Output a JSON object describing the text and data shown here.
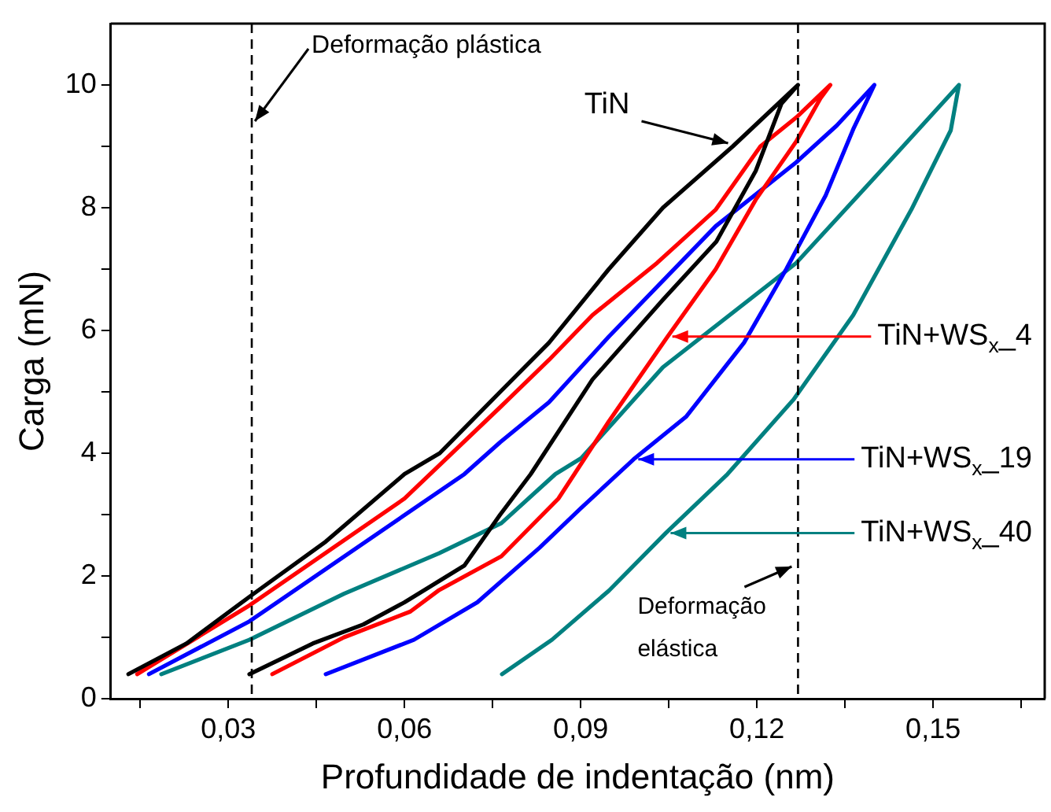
{
  "chart_data": {
    "type": "line",
    "xlabel": "Profundidade de indentação (nm)",
    "ylabel": "Carga (mN)",
    "xlim": [
      0.01,
      0.169
    ],
    "ylim": [
      0,
      11
    ],
    "xticks": [
      {
        "value": 0.015,
        "label": null
      },
      {
        "value": 0.03,
        "label": "0,03"
      },
      {
        "value": 0.045,
        "label": null
      },
      {
        "value": 0.06,
        "label": "0,06"
      },
      {
        "value": 0.075,
        "label": null
      },
      {
        "value": 0.09,
        "label": "0,09"
      },
      {
        "value": 0.105,
        "label": null
      },
      {
        "value": 0.12,
        "label": "0,12"
      },
      {
        "value": 0.135,
        "label": null
      },
      {
        "value": 0.15,
        "label": "0,15"
      },
      {
        "value": 0.165,
        "label": null
      }
    ],
    "yticks": [
      0,
      {
        "value": 1,
        "label": null
      },
      2,
      {
        "value": 3,
        "label": null
      },
      4,
      {
        "value": 5,
        "label": null
      },
      6,
      {
        "value": 7,
        "label": null
      },
      8,
      {
        "value": 9,
        "label": null
      },
      10
    ],
    "grid": false,
    "legend": false,
    "marker": "none",
    "line_style": "solid",
    "ref_lines": [
      {
        "axis": "x",
        "value": 0.034,
        "label": "Deformação plástica",
        "color": "#000000",
        "line_style": "dashed"
      },
      {
        "axis": "x",
        "value": 0.127,
        "label": "Deformação elástica",
        "color": "#000000",
        "line_style": "dashed"
      }
    ],
    "series": [
      {
        "name": "TiN",
        "color": "#000000",
        "x": [
          0.013,
          0.0229,
          0.0336,
          0.0466,
          0.06,
          0.066,
          0.0763,
          0.0846,
          0.0948,
          0.104,
          0.1159,
          0.127,
          0.1242,
          0.1198,
          0.1131,
          0.104,
          0.092,
          0.0815,
          0.0763,
          0.0702,
          0.06,
          0.053,
          0.0444,
          0.0336
        ],
        "values": [
          0.4,
          0.9,
          1.66,
          2.56,
          3.66,
          4.0,
          5.0,
          5.8,
          7.0,
          8.0,
          9.0,
          10,
          9.7,
          8.6,
          7.45,
          6.5,
          5.2,
          3.66,
          3.0,
          2.17,
          1.57,
          1.21,
          0.9,
          0.4
        ]
      },
      {
        "name": "TiN+WS$_{x}$_4",
        "color": "#ff0000",
        "x": [
          0.0145,
          0.0336,
          0.06,
          0.0763,
          0.0846,
          0.092,
          0.103,
          0.113,
          0.1206,
          0.1267,
          0.1325,
          0.1308,
          0.1267,
          0.1198,
          0.113,
          0.1048,
          0.0948,
          0.0862,
          0.0765,
          0.0659,
          0.061,
          0.0497,
          0.0375
        ],
        "values": [
          0.4,
          1.52,
          3.26,
          4.75,
          5.52,
          6.25,
          7.1,
          7.97,
          9.0,
          9.47,
          10,
          9.78,
          9.08,
          8.13,
          7.0,
          5.9,
          4.52,
          3.26,
          2.32,
          1.77,
          1.42,
          1.0,
          0.4
        ]
      },
      {
        "name": "TiN+WS$_{x}$_19",
        "color": "#0000ff",
        "x": [
          0.0165,
          0.0336,
          0.0702,
          0.0763,
          0.0846,
          0.0948,
          0.113,
          0.1267,
          0.1336,
          0.14,
          0.1365,
          0.1317,
          0.125,
          0.1178,
          0.108,
          0.099,
          0.09,
          0.083,
          0.0724,
          0.0616,
          0.0466
        ],
        "values": [
          0.4,
          1.26,
          3.66,
          4.18,
          4.83,
          5.9,
          7.7,
          8.74,
          9.34,
          10,
          9.3,
          8.2,
          7.0,
          5.8,
          4.6,
          3.9,
          3.1,
          2.46,
          1.57,
          0.96,
          0.4
        ]
      },
      {
        "name": "TiN+WS$_{x}$_40",
        "color": "#008080",
        "x": [
          0.0186,
          0.0336,
          0.0497,
          0.0659,
          0.0765,
          0.0857,
          0.0901,
          0.104,
          0.1267,
          0.1408,
          0.1544,
          0.153,
          0.1463,
          0.1364,
          0.1262,
          0.115,
          0.1045,
          0.0948,
          0.0851,
          0.0766
        ],
        "values": [
          0.4,
          0.96,
          1.71,
          2.37,
          2.86,
          3.66,
          3.92,
          5.4,
          7.1,
          8.57,
          10,
          9.26,
          7.97,
          6.25,
          4.87,
          3.66,
          2.7,
          1.76,
          0.96,
          0.4
        ]
      }
    ]
  }
}
